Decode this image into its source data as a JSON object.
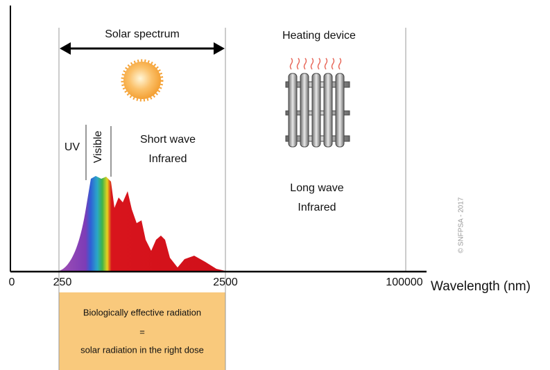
{
  "labels": {
    "solar_spectrum": "Solar spectrum",
    "heating_device": "Heating device",
    "uv": "UV",
    "visible": "Visible",
    "short_wave": [
      "Short wave",
      "Infrared"
    ],
    "long_wave": [
      "Long wave",
      "Infrared"
    ],
    "copyright": "© SNFPSA - 2017"
  },
  "axis": {
    "ticks": [
      "0",
      "250",
      "2500",
      "100000"
    ],
    "label": "Wavelength (nm)"
  },
  "box": {
    "lines": [
      "Biologically effective radiation",
      "=",
      "solar radiation in the right dose"
    ]
  }
}
